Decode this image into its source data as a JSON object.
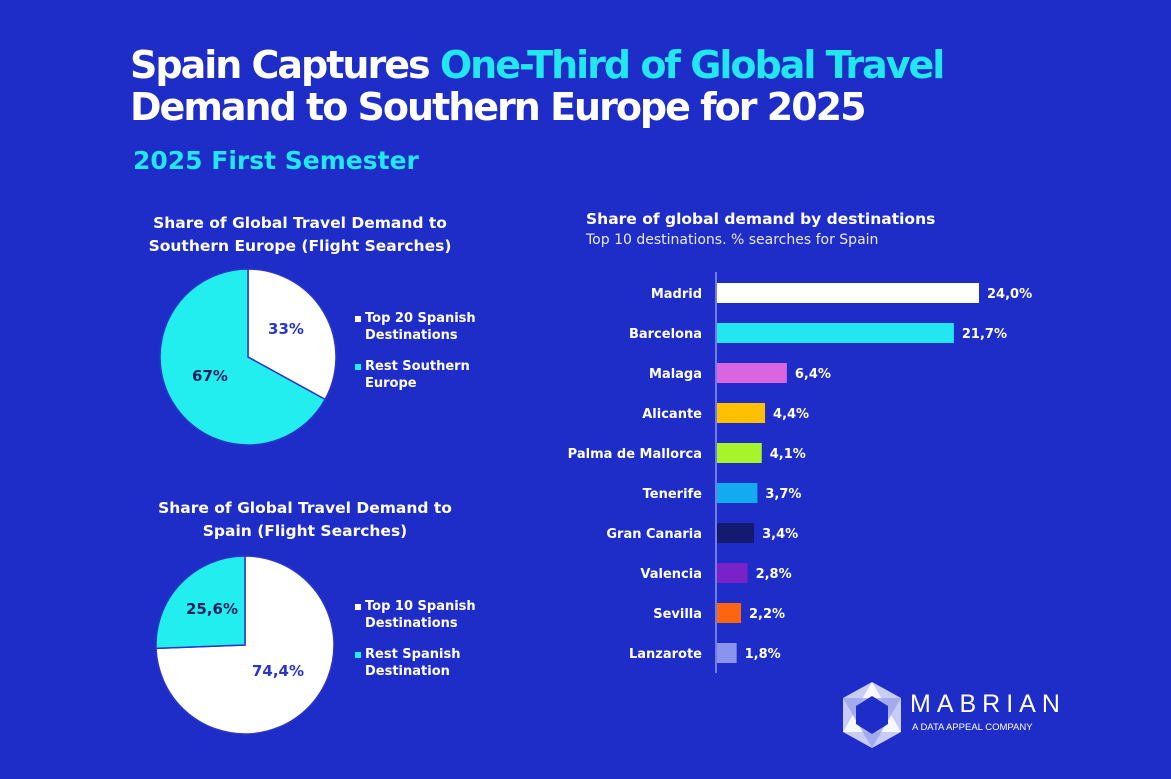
{
  "header": {
    "title_part1": "Spain Captures ",
    "title_highlight": "One-Third of Global Travel",
    "title_line2": "Demand to Southern Europe for 2025",
    "subtitle": "2025 First Semester"
  },
  "colors": {
    "background": "#1f2dc8",
    "accent": "#22e6f0",
    "white": "#ffffff"
  },
  "chart_data": [
    {
      "type": "pie",
      "title": "Share of Global Travel Demand to Southern Europe (Flight Searches)",
      "title_lines": [
        "Share of Global Travel Demand to",
        "Southern Europe (Flight Searches)"
      ],
      "slices": [
        {
          "label": "Top 20 Spanish Destinations",
          "legend_lines": [
            "Top 20 Spanish",
            "Destinations"
          ],
          "value": 33,
          "value_label": "33%",
          "color": "#ffffff",
          "label_color": "#2a36c8"
        },
        {
          "label": "Rest Southern Europe",
          "legend_lines": [
            "Rest Southern",
            "Europe"
          ],
          "value": 67,
          "value_label": "67%",
          "color": "#22eef0",
          "label_color": "#10205a"
        }
      ],
      "legend_placement": "right"
    },
    {
      "type": "pie",
      "title": "Share of Global Travel Demand to Spain (Flight Searches)",
      "title_lines": [
        "Share of Global Travel Demand to",
        "Spain (Flight Searches)"
      ],
      "slices": [
        {
          "label": "Top 10 Spanish Destinations",
          "legend_lines": [
            "Top 10 Spanish",
            "Destinations"
          ],
          "value": 74.4,
          "value_label": "74,4%",
          "color": "#ffffff",
          "label_color": "#2a36c8"
        },
        {
          "label": "Rest Spanish Destination",
          "legend_lines": [
            "Rest Spanish",
            "Destination"
          ],
          "value": 25.6,
          "value_label": "25,6%",
          "color": "#22eef0",
          "label_color": "#10205a"
        }
      ],
      "legend_placement": "right"
    },
    {
      "type": "bar",
      "orientation": "horizontal",
      "title": "Share of global demand by destinations",
      "subtitle": "Top 10 destinations. % searches for Spain",
      "categories": [
        "Madrid",
        "Barcelona",
        "Malaga",
        "Alicante",
        "Palma de Mallorca",
        "Tenerife",
        "Gran Canaria",
        "Valencia",
        "Sevilla",
        "Lanzarote"
      ],
      "values": [
        24.0,
        21.7,
        6.4,
        4.4,
        4.1,
        3.7,
        3.4,
        2.8,
        2.2,
        1.8
      ],
      "value_labels": [
        "24,0%",
        "21,7%",
        "6,4%",
        "4,4%",
        "4,1%",
        "3,7%",
        "3,4%",
        "2,8%",
        "2,2%",
        "1,8%"
      ],
      "colors": [
        "#ffffff",
        "#22e6f0",
        "#d966e0",
        "#ffc000",
        "#a6f52a",
        "#12aaf0",
        "#141a70",
        "#7a22c8",
        "#ff6410",
        "#8a94ee"
      ],
      "xlim": [
        0,
        24
      ]
    }
  ],
  "logo": {
    "name": "MABRIAN",
    "tagline": "A DATA APPEAL COMPANY"
  }
}
